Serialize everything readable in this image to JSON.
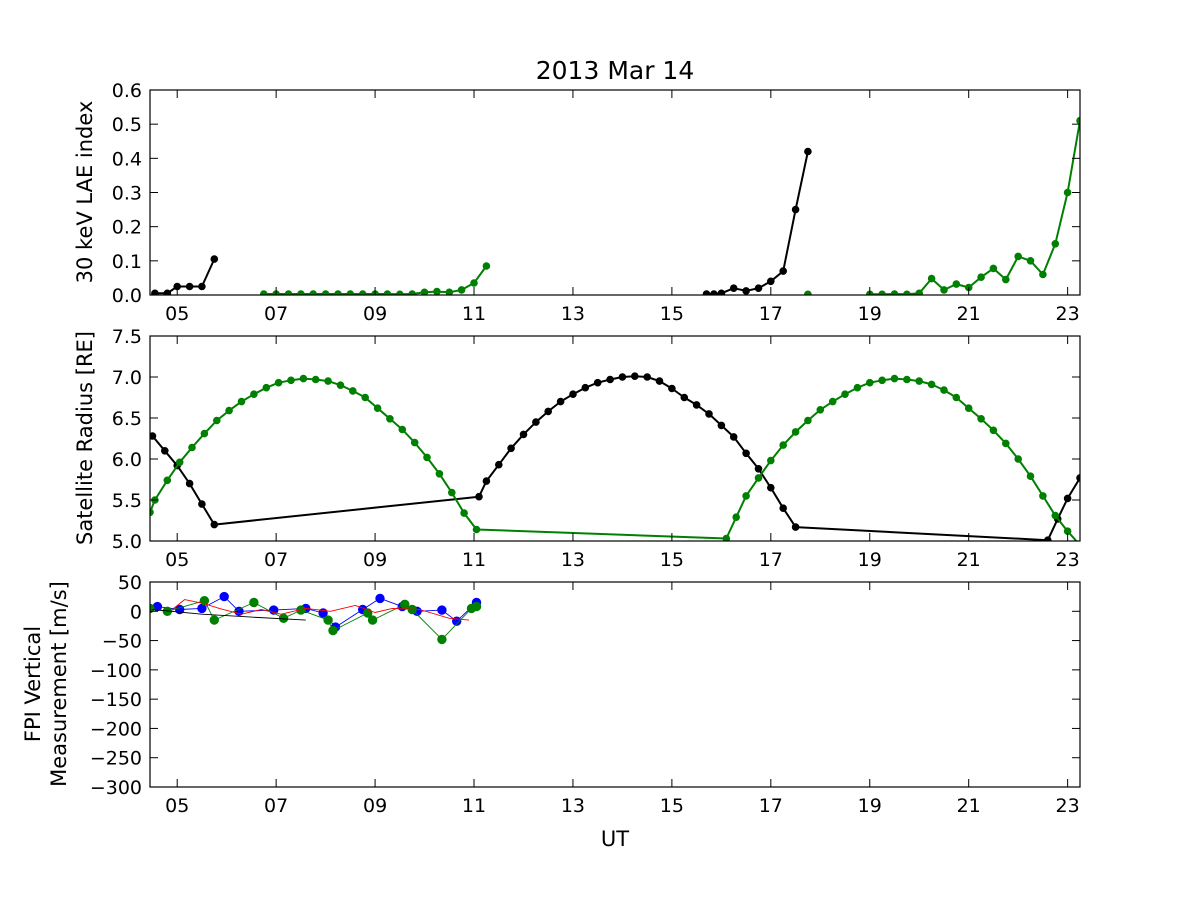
{
  "chart_data": [
    {
      "type": "line",
      "title": "2013 Mar 14",
      "xlabel": "",
      "ylabel": "30 keV LAE index",
      "xlim": [
        4.45,
        23.25
      ],
      "ylim": [
        0,
        0.6
      ],
      "xticks": [
        5,
        7,
        9,
        11,
        13,
        15,
        17,
        19,
        21,
        23
      ],
      "xtick_labels": [
        "05",
        "07",
        "09",
        "11",
        "13",
        "15",
        "17",
        "19",
        "21",
        "23"
      ],
      "yticks": [
        0.0,
        0.1,
        0.2,
        0.3,
        0.4,
        0.5,
        0.6
      ],
      "ytick_labels": [
        "0.0",
        "0.1",
        "0.2",
        "0.3",
        "0.4",
        "0.5",
        "0.6"
      ],
      "grid": false,
      "series": [
        {
          "color": "#000000",
          "marker": true,
          "points": [
            [
              4.55,
              0.005
            ],
            [
              4.8,
              0.005
            ],
            [
              5.0,
              0.025
            ],
            [
              5.25,
              0.025
            ],
            [
              5.5,
              0.025
            ],
            [
              5.75,
              0.105
            ]
          ]
        },
        {
          "color": "#000000",
          "marker": true,
          "points": [
            [
              15.7,
              0.003
            ],
            [
              15.85,
              0.003
            ],
            [
              16.0,
              0.005
            ],
            [
              16.25,
              0.02
            ],
            [
              16.5,
              0.012
            ],
            [
              16.75,
              0.02
            ],
            [
              17.0,
              0.04
            ],
            [
              17.25,
              0.07
            ],
            [
              17.5,
              0.25
            ],
            [
              17.75,
              0.42
            ]
          ]
        },
        {
          "color": "#008000",
          "marker": true,
          "points": [
            [
              6.75,
              0.003
            ],
            [
              7.0,
              0.003
            ],
            [
              7.25,
              0.003
            ],
            [
              7.5,
              0.003
            ],
            [
              7.75,
              0.003
            ],
            [
              8.0,
              0.003
            ],
            [
              8.25,
              0.003
            ],
            [
              8.5,
              0.003
            ],
            [
              8.75,
              0.003
            ],
            [
              9.0,
              0.003
            ],
            [
              9.25,
              0.003
            ],
            [
              9.5,
              0.002
            ],
            [
              9.75,
              0.003
            ],
            [
              10.0,
              0.008
            ],
            [
              10.25,
              0.01
            ],
            [
              10.5,
              0.008
            ],
            [
              10.75,
              0.015
            ],
            [
              11.0,
              0.035
            ],
            [
              11.25,
              0.085
            ]
          ]
        },
        {
          "color": "#008000",
          "marker": true,
          "points": [
            [
              17.75,
              0.002
            ]
          ]
        },
        {
          "color": "#008000",
          "marker": true,
          "points": [
            [
              19.0,
              0.002
            ],
            [
              19.25,
              0.002
            ],
            [
              19.5,
              0.003
            ],
            [
              19.75,
              0.002
            ],
            [
              20.0,
              0.005
            ],
            [
              20.25,
              0.048
            ],
            [
              20.5,
              0.015
            ],
            [
              20.75,
              0.032
            ],
            [
              21.0,
              0.022
            ],
            [
              21.25,
              0.052
            ],
            [
              21.5,
              0.078
            ],
            [
              21.75,
              0.045
            ],
            [
              22.0,
              0.113
            ],
            [
              22.25,
              0.1
            ],
            [
              22.5,
              0.06
            ],
            [
              22.75,
              0.15
            ],
            [
              23.0,
              0.3
            ],
            [
              23.25,
              0.51
            ]
          ]
        }
      ]
    },
    {
      "type": "line",
      "title": "",
      "xlabel": "",
      "ylabel": "Satellite Radius [RE]",
      "xlim": [
        4.45,
        23.25
      ],
      "ylim": [
        5.0,
        7.5
      ],
      "xticks": [
        5,
        7,
        9,
        11,
        13,
        15,
        17,
        19,
        21,
        23
      ],
      "xtick_labels": [
        "05",
        "07",
        "09",
        "11",
        "13",
        "15",
        "17",
        "19",
        "21",
        "23"
      ],
      "yticks": [
        5.0,
        5.5,
        6.0,
        6.5,
        7.0,
        7.5
      ],
      "ytick_labels": [
        "5.0",
        "5.5",
        "6.0",
        "6.5",
        "7.0",
        "7.5"
      ],
      "grid": false,
      "series": [
        {
          "color": "#000000",
          "marker": true,
          "points": [
            [
              4.5,
              6.28
            ],
            [
              4.75,
              6.1
            ],
            [
              5.0,
              5.92
            ],
            [
              5.25,
              5.7
            ],
            [
              5.5,
              5.45
            ],
            [
              5.75,
              5.2
            ],
            [
              11.1,
              5.54
            ],
            [
              11.25,
              5.73
            ],
            [
              11.5,
              5.93
            ],
            [
              11.75,
              6.13
            ],
            [
              12.0,
              6.3
            ],
            [
              12.25,
              6.45
            ],
            [
              12.5,
              6.58
            ],
            [
              12.75,
              6.7
            ],
            [
              13.0,
              6.79
            ],
            [
              13.25,
              6.87
            ],
            [
              13.5,
              6.93
            ],
            [
              13.75,
              6.97
            ],
            [
              14.0,
              7.0
            ],
            [
              14.25,
              7.01
            ],
            [
              14.5,
              7.0
            ],
            [
              14.75,
              6.95
            ],
            [
              15.0,
              6.86
            ],
            [
              15.25,
              6.75
            ],
            [
              15.5,
              6.66
            ],
            [
              15.75,
              6.55
            ],
            [
              16.0,
              6.41
            ],
            [
              16.25,
              6.27
            ],
            [
              16.5,
              6.07
            ],
            [
              16.75,
              5.88
            ],
            [
              17.0,
              5.65
            ],
            [
              17.25,
              5.4
            ],
            [
              17.5,
              5.17
            ],
            [
              22.6,
              5.01
            ],
            [
              22.8,
              5.27
            ],
            [
              23.0,
              5.52
            ],
            [
              23.25,
              5.77
            ]
          ]
        },
        {
          "color": "#008000",
          "marker": true,
          "points": [
            [
              4.45,
              5.35
            ],
            [
              4.55,
              5.5
            ],
            [
              4.8,
              5.74
            ],
            [
              5.05,
              5.96
            ],
            [
              5.3,
              6.14
            ],
            [
              5.55,
              6.31
            ],
            [
              5.8,
              6.47
            ],
            [
              6.05,
              6.59
            ],
            [
              6.3,
              6.7
            ],
            [
              6.55,
              6.79
            ],
            [
              6.8,
              6.87
            ],
            [
              7.05,
              6.93
            ],
            [
              7.3,
              6.96
            ],
            [
              7.55,
              6.98
            ],
            [
              7.8,
              6.97
            ],
            [
              8.05,
              6.95
            ],
            [
              8.3,
              6.9
            ],
            [
              8.55,
              6.83
            ],
            [
              8.8,
              6.75
            ],
            [
              9.05,
              6.62
            ],
            [
              9.3,
              6.49
            ],
            [
              9.55,
              6.36
            ],
            [
              9.8,
              6.2
            ],
            [
              10.05,
              6.02
            ],
            [
              10.3,
              5.82
            ],
            [
              10.55,
              5.59
            ],
            [
              10.8,
              5.34
            ],
            [
              11.05,
              5.14
            ],
            [
              16.1,
              5.03
            ],
            [
              16.3,
              5.29
            ],
            [
              16.5,
              5.55
            ],
            [
              16.75,
              5.77
            ],
            [
              17.0,
              5.98
            ],
            [
              17.25,
              6.17
            ],
            [
              17.5,
              6.33
            ],
            [
              17.75,
              6.47
            ],
            [
              18.0,
              6.6
            ],
            [
              18.25,
              6.7
            ],
            [
              18.5,
              6.79
            ],
            [
              18.75,
              6.87
            ],
            [
              19.0,
              6.93
            ],
            [
              19.25,
              6.96
            ],
            [
              19.5,
              6.98
            ],
            [
              19.75,
              6.97
            ],
            [
              20.0,
              6.95
            ],
            [
              20.25,
              6.91
            ],
            [
              20.5,
              6.84
            ],
            [
              20.75,
              6.75
            ],
            [
              21.0,
              6.62
            ],
            [
              21.25,
              6.49
            ],
            [
              21.5,
              6.35
            ],
            [
              21.75,
              6.19
            ],
            [
              22.0,
              6.0
            ],
            [
              22.25,
              5.79
            ],
            [
              22.5,
              5.55
            ],
            [
              22.75,
              5.31
            ],
            [
              23.0,
              5.12
            ],
            [
              23.25,
              4.95
            ]
          ]
        }
      ]
    },
    {
      "type": "line",
      "title": "",
      "xlabel": "UT",
      "ylabel": "FPI Vertical\nMeasurement [m/s]",
      "xlim": [
        4.45,
        23.25
      ],
      "ylim": [
        -300,
        50
      ],
      "xticks": [
        5,
        7,
        9,
        11,
        13,
        15,
        17,
        19,
        21,
        23
      ],
      "xtick_labels": [
        "05",
        "07",
        "09",
        "11",
        "13",
        "15",
        "17",
        "19",
        "21",
        "23"
      ],
      "yticks": [
        50,
        0,
        -50,
        -100,
        -150,
        -200,
        -250,
        -300
      ],
      "ytick_labels": [
        "50",
        "0",
        "−50",
        "−100",
        "−150",
        "−200",
        "−250",
        "−300"
      ],
      "grid": false,
      "series": [
        {
          "color": "#0000ff",
          "marker": true,
          "linewidth": 0.9,
          "points": [
            [
              4.6,
              8
            ],
            [
              5.05,
              3
            ],
            [
              5.5,
              5
            ],
            [
              5.95,
              25
            ],
            [
              6.25,
              0
            ],
            [
              6.95,
              2
            ],
            [
              7.6,
              5
            ],
            [
              7.95,
              -3
            ],
            [
              8.2,
              -27
            ],
            [
              8.75,
              3
            ],
            [
              9.1,
              22
            ],
            [
              9.55,
              8
            ],
            [
              9.85,
              0
            ],
            [
              10.35,
              2
            ],
            [
              10.65,
              -17
            ],
            [
              11.05,
              15
            ]
          ]
        },
        {
          "color": "#008000",
          "marker": true,
          "linewidth": 0.9,
          "points": [
            [
              4.45,
              5
            ],
            [
              4.8,
              0
            ],
            [
              5.55,
              18
            ],
            [
              5.75,
              -15
            ],
            [
              6.55,
              15
            ],
            [
              7.15,
              -12
            ],
            [
              7.5,
              2
            ],
            [
              8.05,
              -15
            ],
            [
              8.15,
              -33
            ],
            [
              8.85,
              -3
            ],
            [
              8.95,
              -15
            ],
            [
              9.6,
              12
            ],
            [
              9.75,
              3
            ],
            [
              10.35,
              -48
            ],
            [
              10.95,
              5
            ],
            [
              11.05,
              8
            ]
          ]
        },
        {
          "color": "#ff0000",
          "marker": false,
          "linewidth": 0.9,
          "points": [
            [
              4.9,
              3
            ],
            [
              5.15,
              20
            ],
            [
              5.55,
              13
            ],
            [
              5.85,
              5
            ],
            [
              6.3,
              -5
            ],
            [
              6.7,
              3
            ],
            [
              7.1,
              -5
            ],
            [
              7.6,
              5
            ],
            [
              8.1,
              0
            ],
            [
              8.6,
              10
            ],
            [
              9.0,
              -2
            ],
            [
              9.35,
              5
            ],
            [
              9.9,
              3
            ],
            [
              10.5,
              -12
            ],
            [
              10.9,
              -15
            ]
          ]
        },
        {
          "color": "#000000",
          "marker": false,
          "linewidth": 0.9,
          "points": [
            [
              4.5,
              3
            ],
            [
              5.5,
              -5
            ],
            [
              6.5,
              -10
            ],
            [
              7.6,
              -15
            ]
          ]
        }
      ]
    }
  ]
}
